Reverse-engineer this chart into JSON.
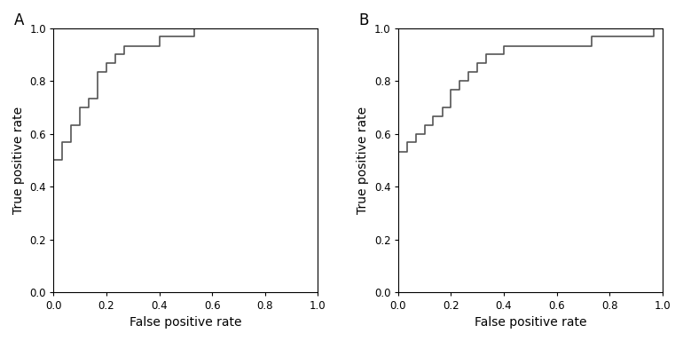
{
  "panel_A_label": "A",
  "panel_B_label": "B",
  "xlabel": "False positive rate",
  "ylabel": "True positive rate",
  "xlim": [
    0.0,
    1.0
  ],
  "ylim": [
    0.0,
    1.0
  ],
  "xticks": [
    0.0,
    0.2,
    0.4,
    0.6,
    0.8,
    1.0
  ],
  "yticks": [
    0.0,
    0.2,
    0.4,
    0.6,
    0.8,
    1.0
  ],
  "line_color": "#555555",
  "line_width": 1.2,
  "roc_A_fpr": [
    0.0,
    0.0,
    0.0,
    0.033,
    0.033,
    0.067,
    0.067,
    0.1,
    0.1,
    0.133,
    0.133,
    0.167,
    0.167,
    0.2,
    0.2,
    0.233,
    0.233,
    0.267,
    0.267,
    0.3,
    0.333,
    0.367,
    0.4,
    0.433,
    0.467,
    0.5,
    0.533,
    1.0
  ],
  "roc_A_tpr": [
    0.0,
    0.133,
    0.5,
    0.5,
    0.567,
    0.567,
    0.633,
    0.633,
    0.7,
    0.7,
    0.733,
    0.733,
    0.833,
    0.833,
    0.867,
    0.867,
    0.9,
    0.9,
    0.933,
    0.933,
    0.933,
    0.933,
    0.967,
    0.967,
    0.967,
    0.967,
    1.0,
    1.0
  ],
  "roc_B_fpr": [
    0.0,
    0.0,
    0.0,
    0.033,
    0.033,
    0.067,
    0.067,
    0.1,
    0.1,
    0.133,
    0.133,
    0.167,
    0.167,
    0.2,
    0.2,
    0.233,
    0.233,
    0.267,
    0.267,
    0.3,
    0.3,
    0.333,
    0.333,
    0.367,
    0.367,
    0.4,
    0.4,
    0.433,
    0.433,
    0.467,
    0.467,
    0.5,
    0.5,
    0.533,
    0.533,
    0.567,
    0.567,
    0.6,
    0.6,
    0.633,
    0.633,
    0.667,
    0.667,
    0.7,
    0.7,
    0.733,
    0.733,
    0.767,
    0.767,
    0.8,
    0.8,
    0.833,
    0.833,
    0.867,
    0.867,
    0.9,
    0.9,
    0.933,
    0.933,
    0.967,
    0.967,
    1.0
  ],
  "roc_B_tpr": [
    0.0,
    0.4,
    0.533,
    0.533,
    0.567,
    0.567,
    0.6,
    0.6,
    0.633,
    0.633,
    0.667,
    0.667,
    0.7,
    0.7,
    0.767,
    0.767,
    0.8,
    0.8,
    0.833,
    0.833,
    0.867,
    0.867,
    0.9,
    0.9,
    0.9,
    0.9,
    0.933,
    0.933,
    0.933,
    0.933,
    0.933,
    0.933,
    0.933,
    0.933,
    0.933,
    0.933,
    0.933,
    0.933,
    0.933,
    0.933,
    0.933,
    0.933,
    0.933,
    0.933,
    0.933,
    0.933,
    0.967,
    0.967,
    0.967,
    0.967,
    0.967,
    0.967,
    0.967,
    0.967,
    0.967,
    0.967,
    0.967,
    0.967,
    0.967,
    0.967,
    1.0,
    1.0
  ],
  "tick_fontsize": 8.5,
  "label_fontsize": 10,
  "panel_label_fontsize": 12,
  "background_color": "#ffffff"
}
